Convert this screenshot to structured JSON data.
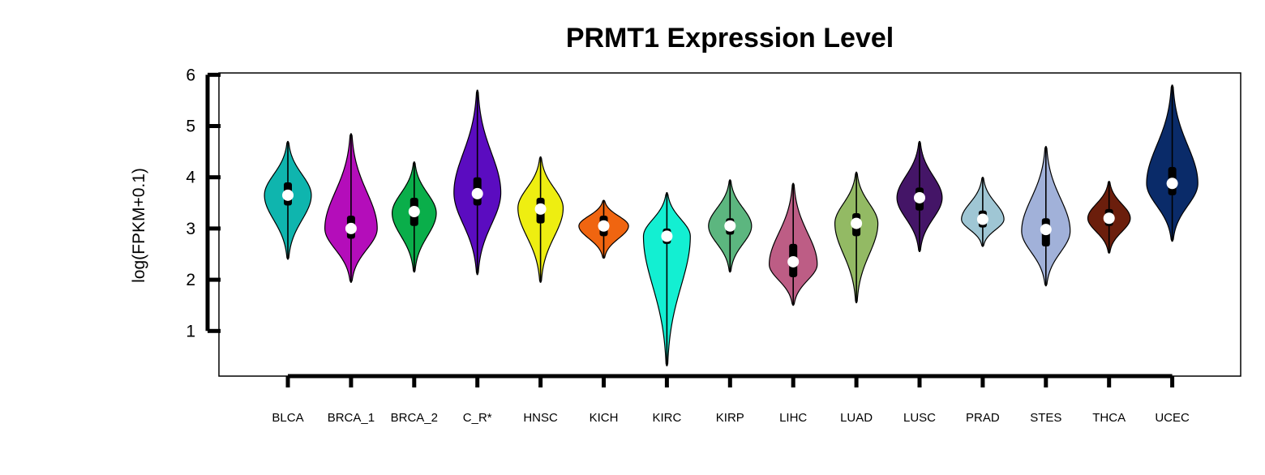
{
  "chart_data": {
    "type": "violin",
    "title": "PRMT1 Expression Level",
    "xlabel": "",
    "ylabel": "log(FPKM+0.1)",
    "ylim": [
      0.1,
      6.0
    ],
    "yticks": [
      1,
      2,
      3,
      4,
      5,
      6
    ],
    "grid": false,
    "legend": "none",
    "categories": [
      "BLCA",
      "BRCA_1",
      "BRCA_2",
      "C_R*",
      "HNSC",
      "KICH",
      "KIRC",
      "KIRP",
      "LIHC",
      "LUAD",
      "LUSC",
      "PRAD",
      "STES",
      "THCA",
      "UCEC"
    ],
    "series": [
      {
        "category": "BLCA",
        "color": "#0FB5AE",
        "min": 2.4,
        "max": 4.7,
        "q1": 3.45,
        "median": 3.65,
        "q3": 3.9,
        "mode": 3.65,
        "width": 0.85
      },
      {
        "category": "BRCA_1",
        "color": "#B40DBA",
        "min": 1.95,
        "max": 4.85,
        "q1": 2.8,
        "median": 3.0,
        "q3": 3.25,
        "mode": 3.0,
        "width": 0.95
      },
      {
        "category": "BRCA_2",
        "color": "#0AAE4A",
        "min": 2.15,
        "max": 4.3,
        "q1": 3.05,
        "median": 3.33,
        "q3": 3.6,
        "mode": 3.3,
        "width": 0.8
      },
      {
        "category": "C_R*",
        "color": "#5B0CC0",
        "min": 2.1,
        "max": 5.7,
        "q1": 3.45,
        "median": 3.68,
        "q3": 4.0,
        "mode": 3.7,
        "width": 0.85
      },
      {
        "category": "HNSC",
        "color": "#EEEE11",
        "min": 1.95,
        "max": 4.4,
        "q1": 3.1,
        "median": 3.38,
        "q3": 3.6,
        "mode": 3.4,
        "width": 0.82
      },
      {
        "category": "KICH",
        "color": "#F06510",
        "min": 2.42,
        "max": 3.55,
        "q1": 2.85,
        "median": 3.05,
        "q3": 3.25,
        "mode": 3.05,
        "width": 0.9
      },
      {
        "category": "KIRC",
        "color": "#13EFD2",
        "min": 0.32,
        "max": 3.7,
        "q1": 2.7,
        "median": 2.85,
        "q3": 3.0,
        "mode": 2.85,
        "width": 0.85
      },
      {
        "category": "KIRP",
        "color": "#5CB67F",
        "min": 2.15,
        "max": 3.95,
        "q1": 2.88,
        "median": 3.05,
        "q3": 3.2,
        "mode": 3.05,
        "width": 0.78
      },
      {
        "category": "LIHC",
        "color": "#BD5D85",
        "min": 1.5,
        "max": 3.88,
        "q1": 2.05,
        "median": 2.35,
        "q3": 2.7,
        "mode": 2.3,
        "width": 0.87
      },
      {
        "category": "LUAD",
        "color": "#93BA64",
        "min": 1.55,
        "max": 4.1,
        "q1": 2.85,
        "median": 3.1,
        "q3": 3.3,
        "mode": 3.1,
        "width": 0.78
      },
      {
        "category": "LUSC",
        "color": "#441567",
        "min": 2.55,
        "max": 4.7,
        "q1": 3.35,
        "median": 3.6,
        "q3": 3.8,
        "mode": 3.6,
        "width": 0.82
      },
      {
        "category": "PRAD",
        "color": "#9FC6D4",
        "min": 2.65,
        "max": 4.0,
        "q1": 3.02,
        "median": 3.18,
        "q3": 3.35,
        "mode": 3.18,
        "width": 0.77
      },
      {
        "category": "STES",
        "color": "#A1B1D9",
        "min": 1.88,
        "max": 4.6,
        "q1": 2.65,
        "median": 2.98,
        "q3": 3.2,
        "mode": 2.95,
        "width": 0.88
      },
      {
        "category": "THCA",
        "color": "#6B1E0C",
        "min": 2.52,
        "max": 3.92,
        "q1": 3.05,
        "median": 3.2,
        "q3": 3.38,
        "mode": 3.2,
        "width": 0.77
      },
      {
        "category": "UCEC",
        "color": "#0A2B69",
        "min": 2.75,
        "max": 5.8,
        "q1": 3.65,
        "median": 3.88,
        "q3": 4.2,
        "mode": 3.88,
        "width": 0.93
      }
    ]
  }
}
